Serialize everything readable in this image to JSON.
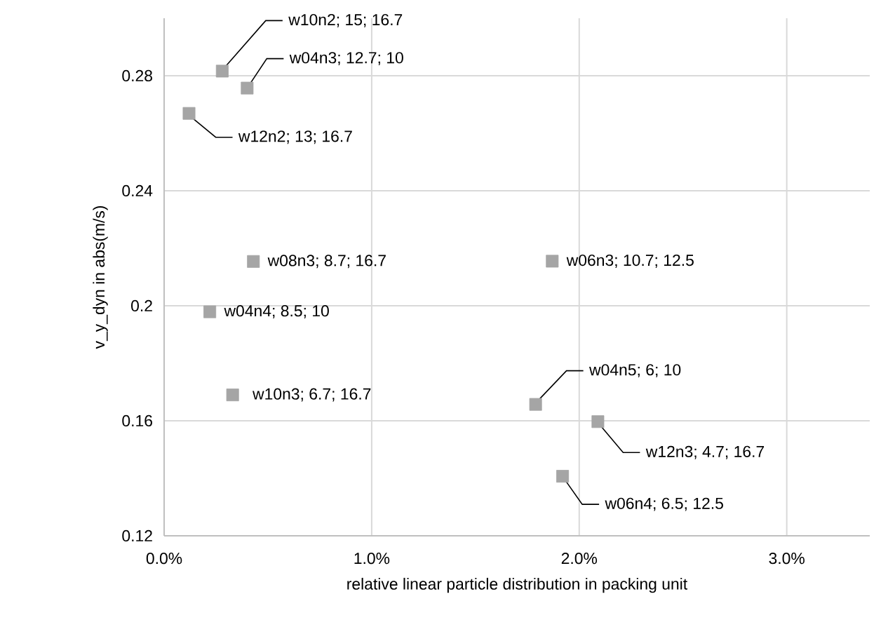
{
  "chart_data": {
    "type": "scatter",
    "xlabel": "relative linear particle distribution in packing unit",
    "ylabel": "v_y_dyn in abs(m/s)",
    "x": [
      0.28,
      0.4,
      0.12,
      0.43,
      0.22,
      0.33,
      1.87,
      1.79,
      2.09,
      1.92
    ],
    "values": [
      0.2816,
      0.2757,
      0.2669,
      0.2154,
      0.1979,
      0.169,
      0.2155,
      0.1657,
      0.1597,
      0.1407
    ],
    "color": "#a5a5a5",
    "marker": "square",
    "grid": true,
    "xlim": [
      0,
      3.4
    ],
    "ylim": [
      0.12,
      0.3
    ],
    "xticks": [
      {
        "value": 0,
        "label": "0.0%"
      },
      {
        "value": 1,
        "label": "1.0%"
      },
      {
        "value": 2,
        "label": "2.0%"
      },
      {
        "value": 3,
        "label": "3.0%"
      }
    ],
    "yticks": [
      0.12,
      0.16,
      0.2,
      0.24,
      0.28
    ],
    "annotations": [
      {
        "text": "w10n2; 15; 16.7",
        "x": 0.28,
        "y": 0.2816
      },
      {
        "text": "w04n3; 12.7; 10",
        "x": 0.4,
        "y": 0.2757
      },
      {
        "text": "w12n2; 13; 16.7",
        "x": 0.12,
        "y": 0.2669
      },
      {
        "text": "w08n3; 8.7; 16.7",
        "x": 0.43,
        "y": 0.2154
      },
      {
        "text": "w04n4; 8.5; 10",
        "x": 0.22,
        "y": 0.1979
      },
      {
        "text": "w10n3; 6.7; 16.7",
        "x": 0.33,
        "y": 0.169
      },
      {
        "text": "w06n3; 10.7; 12.5",
        "x": 1.87,
        "y": 0.2155
      },
      {
        "text": "w04n5; 6; 10",
        "x": 1.79,
        "y": 0.1657
      },
      {
        "text": "w12n3; 4.7; 16.7",
        "x": 2.09,
        "y": 0.1597
      },
      {
        "text": "w06n4; 6.5; 12.5",
        "x": 1.92,
        "y": 0.1407
      }
    ]
  }
}
